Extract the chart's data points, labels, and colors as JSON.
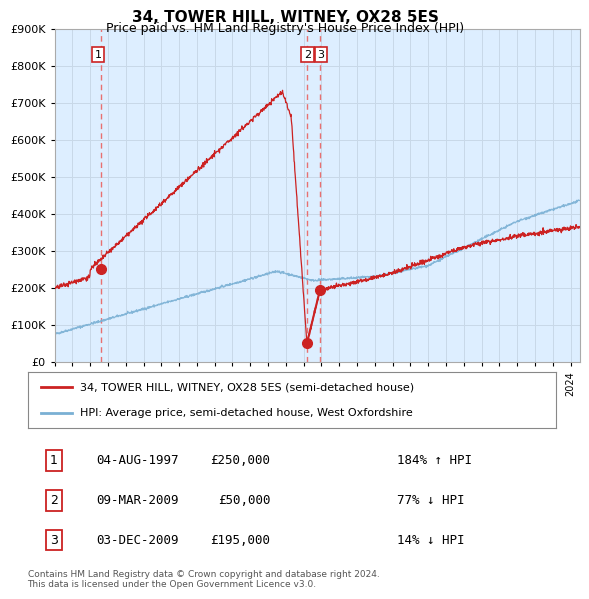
{
  "title": "34, TOWER HILL, WITNEY, OX28 5ES",
  "subtitle": "Price paid vs. HM Land Registry's House Price Index (HPI)",
  "ylim": [
    0,
    900000
  ],
  "xlim_start": 1995.0,
  "xlim_end": 2024.5,
  "hpi_color": "#7ab0d4",
  "price_color": "#cc2222",
  "dashed_color": "#e87070",
  "chart_bg": "#ddeeff",
  "transaction_dates": [
    1997.59,
    2009.18,
    2009.92
  ],
  "transaction_prices": [
    250000,
    50000,
    195000
  ],
  "transaction_labels": [
    "1",
    "2",
    "3"
  ],
  "legend_label_price": "34, TOWER HILL, WITNEY, OX28 5ES (semi-detached house)",
  "legend_label_hpi": "HPI: Average price, semi-detached house, West Oxfordshire",
  "table_rows": [
    [
      "1",
      "04-AUG-1997",
      "£250,000",
      "184% ↑ HPI"
    ],
    [
      "2",
      "09-MAR-2009",
      "£50,000",
      "77% ↓ HPI"
    ],
    [
      "3",
      "03-DEC-2009",
      "£195,000",
      "14% ↓ HPI"
    ]
  ],
  "footnote": "Contains HM Land Registry data © Crown copyright and database right 2024.\nThis data is licensed under the Open Government Licence v3.0.",
  "background_color": "#ffffff",
  "grid_color": "#c8d8e8"
}
